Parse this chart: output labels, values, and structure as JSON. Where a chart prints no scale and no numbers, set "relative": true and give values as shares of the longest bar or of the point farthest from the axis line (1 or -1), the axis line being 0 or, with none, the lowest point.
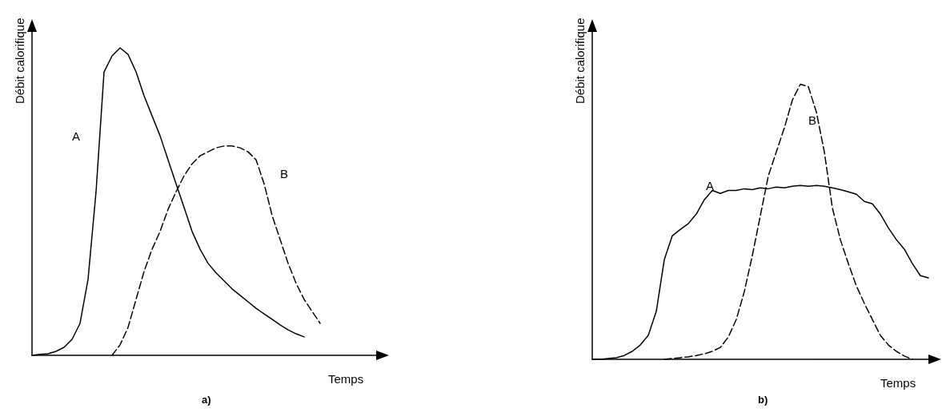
{
  "chart_data": [
    {
      "type": "line",
      "title": "a)",
      "xlabel": "Temps",
      "ylabel": "Débit calorifique",
      "relative": true,
      "grid": false,
      "legend": false,
      "marker": "none",
      "categories": [
        null,
        null,
        null,
        null,
        null,
        null,
        null,
        null,
        null,
        null,
        null,
        null,
        null,
        null,
        null,
        null,
        null,
        null,
        null,
        null,
        null,
        null,
        null,
        null,
        null,
        null,
        null,
        null,
        null,
        null,
        null,
        null,
        null,
        null,
        null,
        null,
        null,
        null,
        null,
        null,
        null,
        null,
        null,
        null
      ],
      "series": [
        {
          "name": "A",
          "color": "#000000",
          "line_style": "solid",
          "values": [
            0,
            0.003,
            0.005,
            0.013,
            0.026,
            0.052,
            0.104,
            0.247,
            0.532,
            0.922,
            0.974,
            1,
            0.979,
            0.922,
            0.844,
            0.779,
            0.714,
            0.636,
            0.558,
            0.481,
            0.403,
            0.345,
            0.299,
            0.268,
            0.242,
            0.216,
            0.195,
            0.174,
            0.153,
            0.135,
            0.117,
            0.099,
            0.083,
            0.07,
            0.06,
            null,
            null,
            null,
            null,
            null,
            null,
            null,
            null,
            null
          ]
        },
        {
          "name": "B",
          "color": "#000000",
          "line_style": "dashed",
          "values": [
            null,
            null,
            null,
            null,
            null,
            null,
            null,
            null,
            null,
            null,
            0,
            0.034,
            0.091,
            0.182,
            0.273,
            0.345,
            0.403,
            0.475,
            0.532,
            0.584,
            0.623,
            0.649,
            0.662,
            0.675,
            0.681,
            0.681,
            0.675,
            0.662,
            0.636,
            0.558,
            0.455,
            0.377,
            0.299,
            0.234,
            0.182,
            0.143,
            0.104,
            null,
            null,
            null,
            null,
            null,
            null,
            null
          ]
        }
      ]
    },
    {
      "type": "line",
      "title": "b)",
      "xlabel": "Temps",
      "ylabel": "Débit calorifique",
      "relative": true,
      "grid": false,
      "legend": false,
      "marker": "none",
      "categories": [
        null,
        null,
        null,
        null,
        null,
        null,
        null,
        null,
        null,
        null,
        null,
        null,
        null,
        null,
        null,
        null,
        null,
        null,
        null,
        null,
        null,
        null,
        null,
        null,
        null,
        null,
        null,
        null,
        null,
        null,
        null,
        null,
        null,
        null,
        null,
        null,
        null,
        null,
        null,
        null,
        null,
        null,
        null
      ],
      "series": [
        {
          "name": "A",
          "color": "#000000",
          "line_style": "solid",
          "values": [
            0,
            0,
            0.003,
            0.006,
            0.014,
            0.029,
            0.052,
            0.087,
            0.174,
            0.362,
            0.449,
            0.472,
            0.493,
            0.528,
            0.58,
            0.614,
            0.603,
            0.614,
            0.614,
            0.62,
            0.617,
            0.623,
            0.62,
            0.626,
            0.623,
            0.629,
            0.632,
            0.629,
            0.632,
            0.629,
            0.623,
            0.617,
            0.609,
            0.6,
            0.574,
            0.565,
            0.528,
            0.478,
            0.435,
            0.4,
            0.348,
            0.304,
            0.296
          ]
        },
        {
          "name": "B",
          "color": "#000000",
          "line_style": "dashed",
          "values": [
            null,
            null,
            null,
            null,
            null,
            null,
            null,
            null,
            null,
            0,
            0.003,
            0.006,
            0.009,
            0.014,
            0.02,
            0.029,
            0.043,
            0.081,
            0.145,
            0.246,
            0.377,
            0.522,
            0.667,
            0.754,
            0.841,
            0.942,
            1,
            0.991,
            0.899,
            0.754,
            0.551,
            0.435,
            0.348,
            0.267,
            0.203,
            0.145,
            0.087,
            0.052,
            0.029,
            0.012,
            0,
            null,
            null
          ]
        }
      ]
    }
  ]
}
